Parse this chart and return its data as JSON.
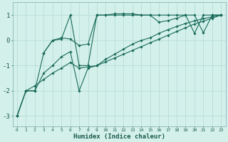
{
  "xlabel": "Humidex (Indice chaleur)",
  "bg_color": "#d4f0eb",
  "grid_color": "#b8ddd7",
  "line_color": "#1a6b5a",
  "xlim_min": -0.5,
  "xlim_max": 23.5,
  "ylim_min": -3.4,
  "ylim_max": 1.5,
  "yticks": [
    -3,
    -2,
    -1,
    0,
    1
  ],
  "xticks": [
    0,
    1,
    2,
    3,
    4,
    5,
    6,
    7,
    8,
    9,
    10,
    11,
    12,
    13,
    14,
    15,
    16,
    17,
    18,
    19,
    20,
    21,
    22,
    23
  ],
  "lines": [
    {
      "x": [
        0,
        1,
        2,
        3,
        4,
        5,
        6,
        7,
        8,
        9,
        10,
        11,
        12,
        13,
        14,
        15,
        16,
        17,
        18,
        19,
        20,
        21,
        22,
        23
      ],
      "y": [
        -3.0,
        -2.0,
        -2.0,
        -0.5,
        0.0,
        0.05,
        1.0,
        -1.0,
        -1.0,
        1.0,
        1.0,
        1.05,
        1.05,
        1.05,
        1.0,
        1.0,
        1.0,
        1.0,
        1.0,
        1.0,
        1.0,
        0.3,
        1.0,
        1.0
      ]
    },
    {
      "x": [
        3,
        4,
        5,
        6,
        7,
        8,
        9,
        10,
        11,
        12,
        13,
        14,
        15,
        16,
        17,
        18,
        19,
        20,
        21,
        22,
        23
      ],
      "y": [
        -0.5,
        0.0,
        0.1,
        0.05,
        -0.2,
        -0.15,
        1.0,
        1.0,
        1.0,
        1.0,
        1.0,
        1.0,
        1.0,
        0.72,
        0.78,
        0.88,
        1.0,
        0.28,
        1.0,
        1.0,
        1.0
      ]
    },
    {
      "x": [
        0,
        1,
        2,
        3,
        4,
        5,
        6,
        7,
        8,
        9,
        10,
        11,
        12,
        13,
        14,
        15,
        16,
        17,
        18,
        19,
        20,
        21,
        22,
        23
      ],
      "y": [
        -3.0,
        -2.0,
        -2.0,
        -1.3,
        -1.0,
        -0.65,
        -0.45,
        -2.0,
        -1.1,
        -1.0,
        -0.75,
        -0.55,
        -0.35,
        -0.15,
        0.0,
        0.1,
        0.28,
        0.42,
        0.55,
        0.67,
        0.77,
        0.86,
        0.93,
        1.0
      ]
    },
    {
      "x": [
        0,
        1,
        2,
        3,
        4,
        5,
        6,
        7,
        8,
        9,
        10,
        11,
        12,
        13,
        14,
        15,
        16,
        17,
        18,
        19,
        20,
        21,
        22,
        23
      ],
      "y": [
        -3.0,
        -2.0,
        -1.8,
        -1.55,
        -1.3,
        -1.1,
        -0.88,
        -1.1,
        -1.05,
        -1.0,
        -0.85,
        -0.7,
        -0.55,
        -0.4,
        -0.25,
        -0.1,
        0.05,
        0.2,
        0.35,
        0.5,
        0.65,
        0.76,
        0.88,
        1.0
      ]
    }
  ]
}
